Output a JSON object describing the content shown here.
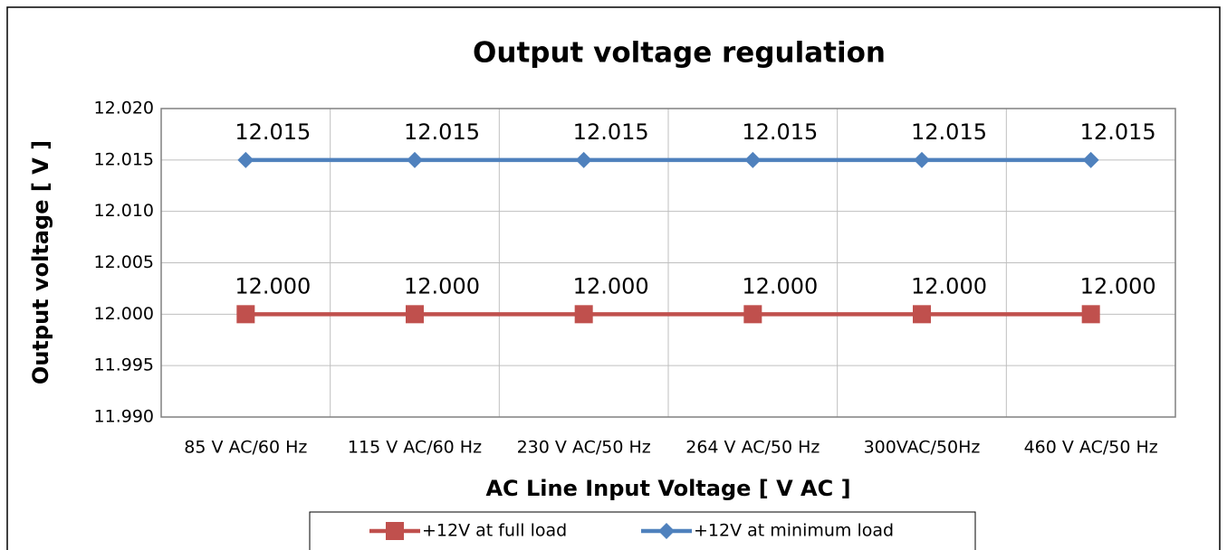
{
  "chart_data": {
    "type": "line",
    "title": "Output voltage regulation",
    "x_label": "AC Line Input Voltage [ V AC ]",
    "y_label": "Output voltage [ V ]",
    "categories": [
      "85 V AC/60 Hz",
      "115 V AC/60 Hz",
      "230 V AC/50 Hz",
      "264 V AC/50 Hz",
      "300VAC/50Hz",
      "460 V AC/50 Hz"
    ],
    "series": [
      {
        "name": "+12V at full load",
        "color": "#c0504d",
        "marker": "square",
        "values": [
          12,
          12,
          12,
          12,
          12,
          12
        ],
        "value_labels": [
          "12.000",
          "12.000",
          "12.000",
          "12.000",
          "12.000",
          "12.000"
        ]
      },
      {
        "name": "+12V at minimum load",
        "color": "#4f81bd",
        "marker": "diamond",
        "values": [
          12.015,
          12.015,
          12.015,
          12.015,
          12.015,
          12.015
        ]
      }
    ],
    "ylim": [
      11.99,
      12.02
    ],
    "yticks": [
      {
        "value": 11.99,
        "label": "11.990"
      },
      11.995,
      {
        "value": 12,
        "label": "12.000"
      },
      12.005,
      {
        "value": 12.01,
        "label": "12.010"
      },
      12.015,
      {
        "value": 12.02,
        "label": "12.020"
      }
    ],
    "grid": true,
    "legend_position": "bottom"
  }
}
